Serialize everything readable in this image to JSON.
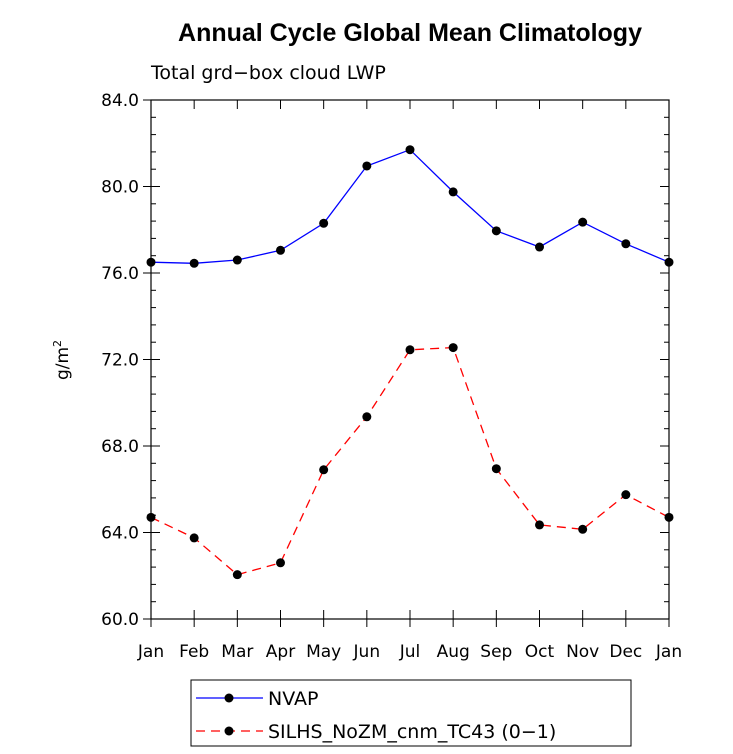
{
  "chart_data": {
    "type": "line",
    "title": "Annual Cycle Global Mean Climatology",
    "subtitle": "Total grd−box cloud LWP",
    "ylabel": "g/m",
    "ylabel_sup": "2",
    "xlabel": "",
    "ylim": [
      60,
      84
    ],
    "yticks": [
      60,
      64,
      68,
      72,
      76,
      80,
      84
    ],
    "ytick_labels": [
      "60.0",
      "64.0",
      "68.0",
      "72.0",
      "76.0",
      "80.0",
      "84.0"
    ],
    "categories": [
      "Jan",
      "Feb",
      "Mar",
      "Apr",
      "May",
      "Jun",
      "Jul",
      "Aug",
      "Sep",
      "Oct",
      "Nov",
      "Dec",
      "Jan"
    ],
    "grid": false,
    "legend_position": "bottom",
    "series": [
      {
        "name": "NVAP",
        "color": "#0000ff",
        "dash": "solid",
        "values": [
          76.5,
          76.45,
          76.6,
          77.05,
          78.3,
          80.95,
          81.7,
          79.75,
          77.95,
          77.2,
          78.35,
          77.35,
          76.5
        ]
      },
      {
        "name": "SILHS_NoZM_cnm_TC43 (0−1)",
        "color": "#ff0000",
        "dash": "dashed",
        "values": [
          64.7,
          63.75,
          62.05,
          62.6,
          66.9,
          69.35,
          72.45,
          72.55,
          66.95,
          64.35,
          64.15,
          65.75,
          64.7
        ]
      }
    ]
  }
}
